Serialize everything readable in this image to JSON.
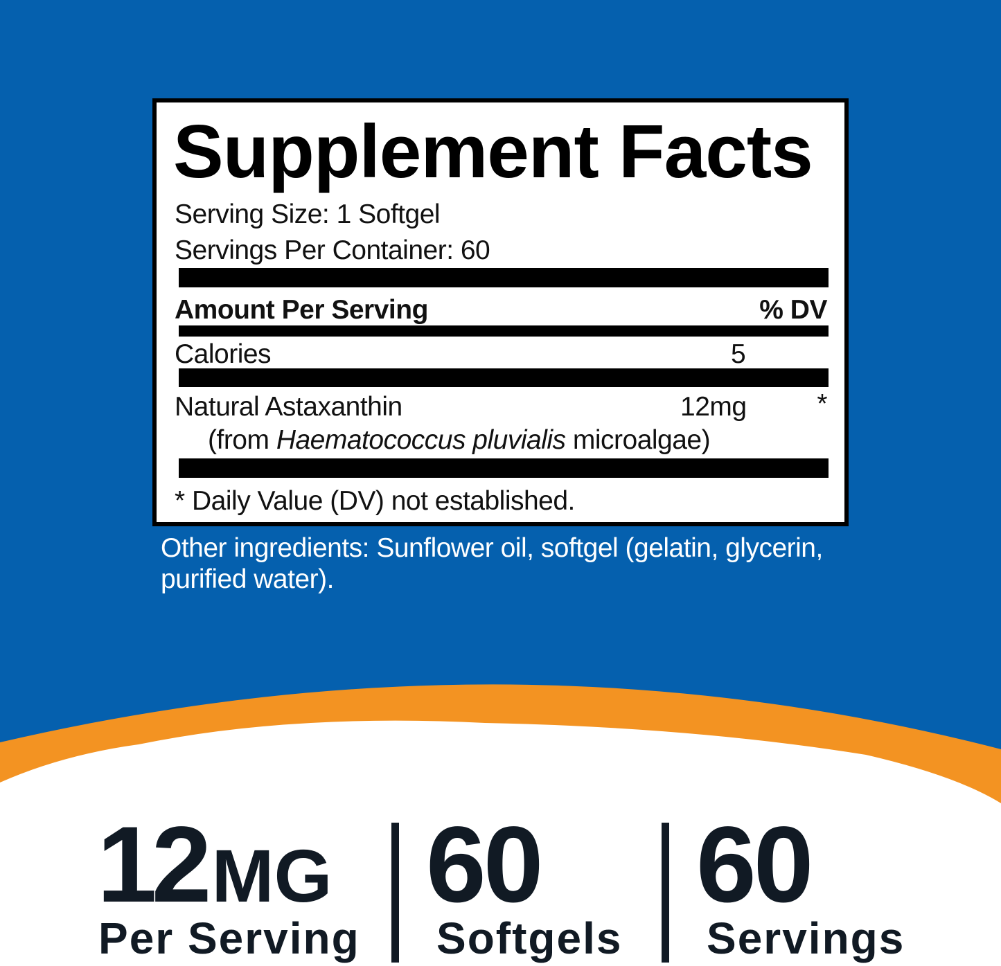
{
  "colors": {
    "background_blue": "#0560ae",
    "accent_orange": "#f39322",
    "text_navy": "#111a24"
  },
  "label": {
    "title": "Supplement Facts",
    "serving_size": "Serving Size: 1 Softgel",
    "servings_per_container": "Servings Per Container: 60",
    "amount_header": "Amount Per Serving",
    "dv_header": "% DV",
    "rows": [
      {
        "name": "Calories",
        "amount": "5",
        "dv": ""
      },
      {
        "name": "Natural Astaxanthin",
        "amount": "12mg",
        "dv": "*",
        "source_prefix": "(from ",
        "source_species": "Haematococcus pluvialis",
        "source_suffix": " microalgae)"
      }
    ],
    "footnote": "* Daily Value (DV) not established."
  },
  "other_ingredients": {
    "line1": "Other ingredients: Sunflower oil, softgel (gelatin, glycerin,",
    "line2": "purified water)."
  },
  "stats": [
    {
      "value": "12",
      "unit": "MG",
      "label": "Per Serving"
    },
    {
      "value": "60",
      "unit": "",
      "label": "Softgels"
    },
    {
      "value": "60",
      "unit": "",
      "label": "Servings"
    }
  ]
}
